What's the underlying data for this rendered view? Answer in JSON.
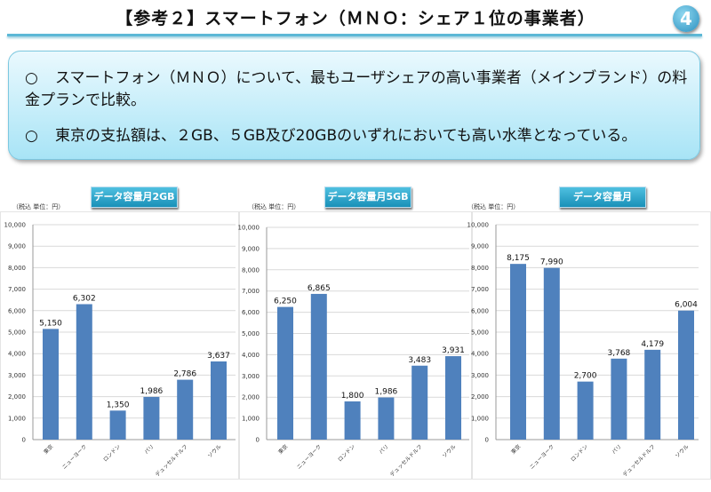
{
  "header": {
    "title": "【参考２】スマートフォン（ＭＮＯ：シェア１位の事業者）",
    "page_badge": "4"
  },
  "summary": {
    "bullet_mark": "○",
    "bullets": [
      "スマートフォン（ＭＮＯ）について、最もユーザシェアの高い事業者（メインブランド）の料金プランで比較。",
      "東京の支払額は、２GB、５GB及び20GBのいずれにおいても高い水準となっている。"
    ]
  },
  "colors": {
    "bar": "#4f81bd",
    "accent": "#1990b8"
  },
  "chart_data": [
    {
      "type": "bar",
      "title": "データ容量月2GB",
      "unit_label": "（税込 単位：円）",
      "categories": [
        "東京",
        "ニューヨーク",
        "ロンドン",
        "パリ",
        "デュッセルドルフ",
        "ソウル"
      ],
      "values": [
        5150,
        6302,
        1350,
        1986,
        2786,
        3637
      ],
      "data_labels": [
        "5,150",
        "6,302",
        "1,350",
        "1,986",
        "2,786",
        "3,637"
      ],
      "ylim": [
        0,
        10000
      ],
      "yticks": [
        "0",
        "1,000",
        "2,000",
        "3,000",
        "4,000",
        "5,000",
        "6,000",
        "7,000",
        "8,000",
        "9,000",
        "10,000"
      ],
      "grid": true
    },
    {
      "type": "bar",
      "title": "データ容量月5GB",
      "unit_label": "（税込 単位：円）",
      "categories": [
        "東京",
        "ニューヨーク",
        "ロンドン",
        "パリ",
        "デュッセルドルフ",
        "ソウル"
      ],
      "values": [
        6250,
        6865,
        1800,
        1986,
        3483,
        3931
      ],
      "data_labels": [
        "6,250",
        "6,865",
        "1,800",
        "1,986",
        "3,483",
        "3,931"
      ],
      "ylim": [
        0,
        10000
      ],
      "yticks": [
        "0",
        "1,000",
        "2,000",
        "3,000",
        "4,000",
        "5,000",
        "6,000",
        "7,000",
        "8,000",
        "9,000",
        "10,000"
      ],
      "grid": true
    },
    {
      "type": "bar",
      "title": "データ容量月20GB",
      "unit_label": "（税込 単位：円）",
      "categories": [
        "東京",
        "ニューヨーク",
        "ロンドン",
        "パリ",
        "デュッセルドルフ",
        "ソウル"
      ],
      "values": [
        8175,
        7990,
        2700,
        3768,
        4179,
        6004
      ],
      "data_labels": [
        "8,175",
        "7,990",
        "2,700",
        "3,768",
        "4,179",
        "6,004"
      ],
      "ylim": [
        0,
        10000
      ],
      "yticks": [
        "0",
        "1,000",
        "2,000",
        "3,000",
        "4,000",
        "5,000",
        "6,000",
        "7,000",
        "8,000",
        "9,000",
        "10,000"
      ],
      "grid": true
    }
  ]
}
